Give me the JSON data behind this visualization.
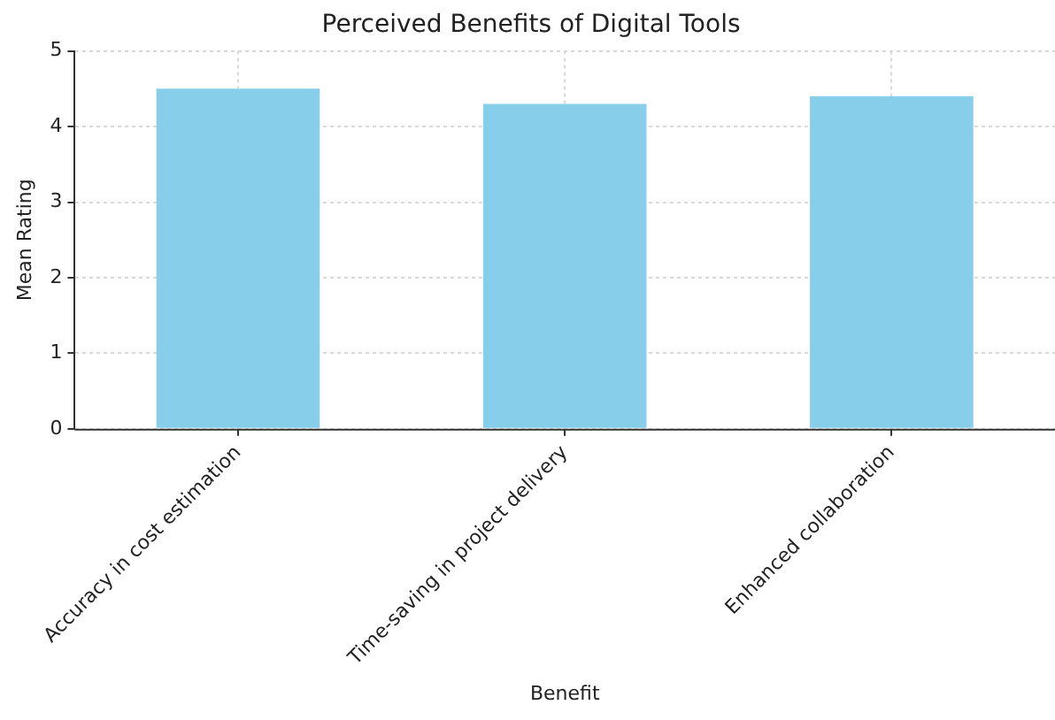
{
  "chart_data": {
    "type": "bar",
    "title": "Perceived Benefits of Digital Tools",
    "xlabel": "Benefit",
    "ylabel": "Mean Rating",
    "categories": [
      "Accuracy in cost estimation",
      "Time-saving in project delivery",
      "Enhanced collaboration"
    ],
    "values": [
      4.5,
      4.3,
      4.4
    ],
    "color": "#87ceeb",
    "ylim": [
      0,
      5
    ],
    "yticks": [
      0,
      1,
      2,
      3,
      4,
      5
    ],
    "grid": true,
    "legend": false
  }
}
